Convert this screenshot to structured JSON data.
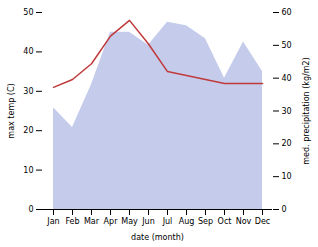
{
  "chart_data": {
    "type": "line",
    "categories": [
      "Jan",
      "Feb",
      "Mar",
      "Apr",
      "May",
      "Jun",
      "Jul",
      "Aug",
      "Sep",
      "Oct",
      "Nov",
      "Dec"
    ],
    "xlabel": "date (month)",
    "ylabel": "max temp (C)",
    "y2label": "med. precipitation (kg/m2)",
    "series": [
      {
        "type": "area",
        "axis": "y2",
        "color": "#c5cceb",
        "values": [
          31,
          25,
          38,
          54,
          54,
          50,
          57,
          56,
          52,
          40,
          51,
          42
        ]
      },
      {
        "type": "line",
        "color": "#c0393b",
        "values": [
          31,
          33,
          37,
          44,
          48,
          42,
          35,
          34,
          33,
          32,
          32,
          32
        ]
      }
    ],
    "ylim": [
      0,
      50
    ],
    "yticks": [
      0,
      10,
      20,
      30,
      40,
      50
    ],
    "y2lim": [
      0,
      60
    ],
    "y2ticks": [
      0,
      10,
      20,
      30,
      40,
      50,
      60
    ],
    "grid": false
  }
}
